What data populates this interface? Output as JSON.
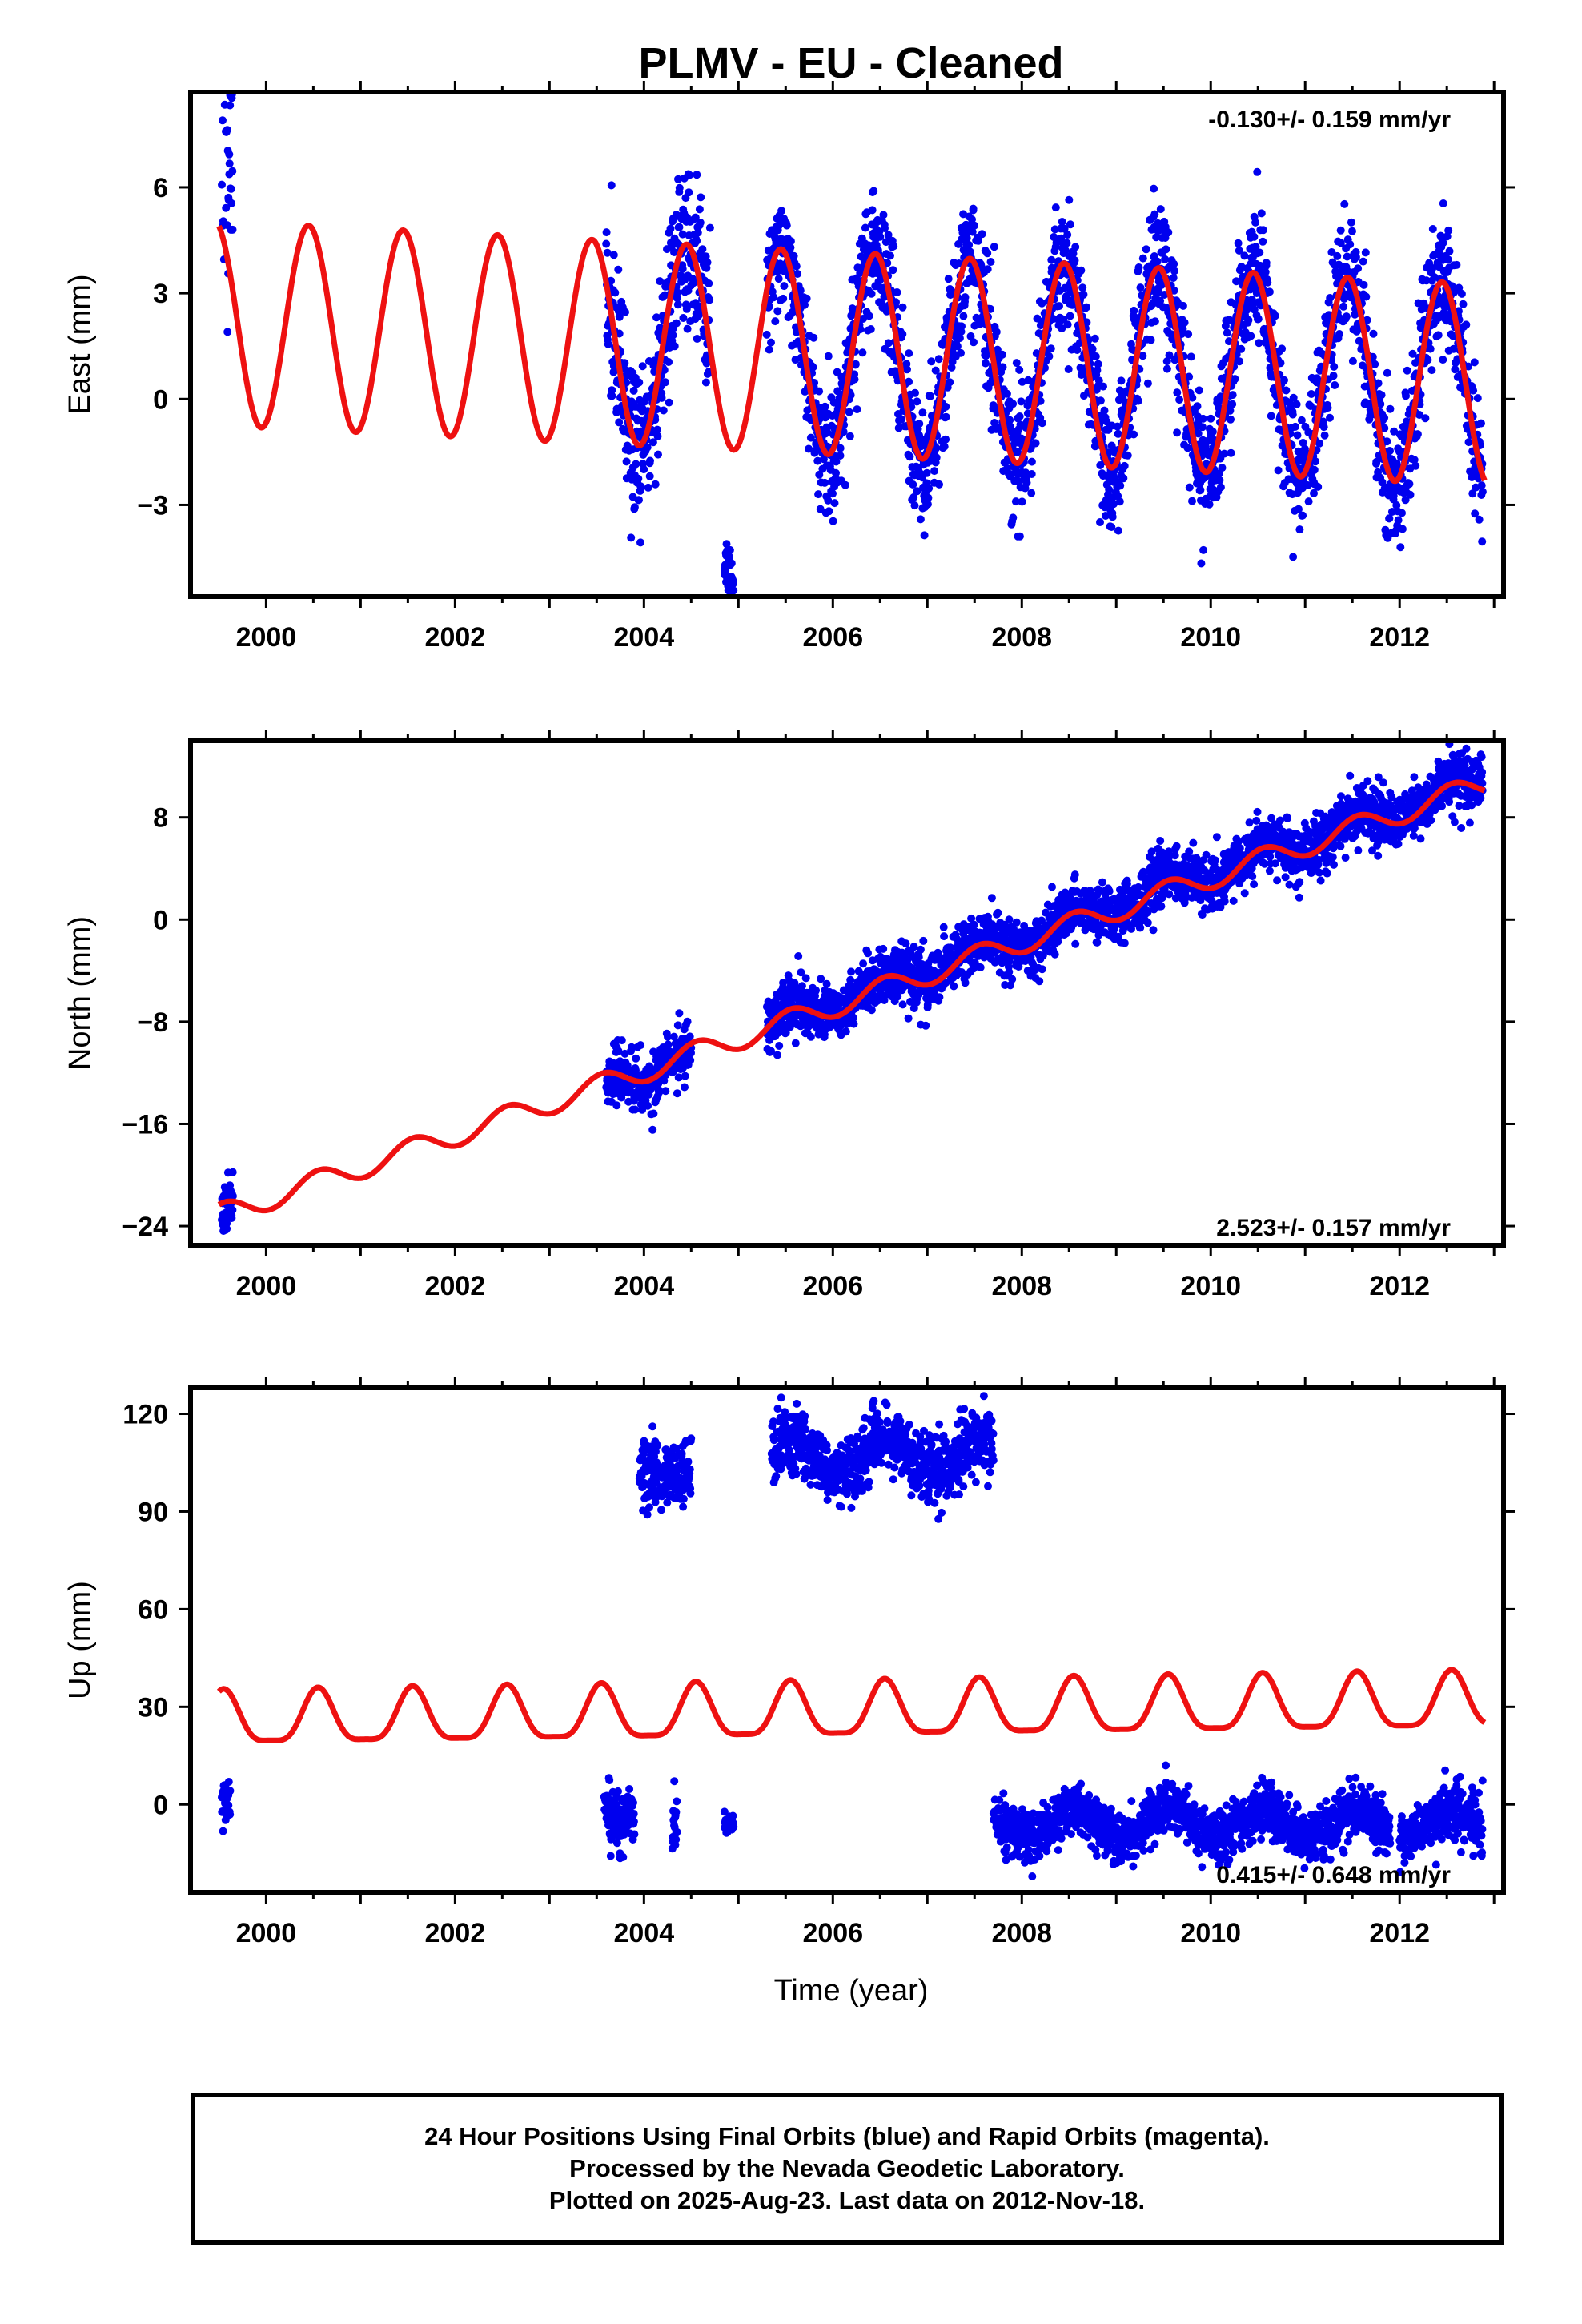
{
  "title": "PLMV  - EU - Cleaned",
  "colors": {
    "data": "#0000ee",
    "model": "#ee1111",
    "frame": "#000000"
  },
  "xlabel": "Time (year)",
  "footer": {
    "line1": "24 Hour Positions Using Final Orbits (blue) and Rapid Orbits (magenta).",
    "line2": "Processed by the Nevada Geodetic Laboratory.",
    "line3": "Plotted on 2025-Aug-23. Last data on 2012-Nov-18."
  },
  "chart_data": [
    {
      "type": "scatter",
      "component": "east",
      "ylabel": "East (mm)",
      "rate_label": "-0.130+/- 0.159 mm/yr",
      "rate_position": "top-right",
      "xlim": [
        1999.2,
        2013.1
      ],
      "ylim": [
        -5.6,
        8.7
      ],
      "xticks": [
        2000,
        2002,
        2004,
        2006,
        2008,
        2010,
        2012
      ],
      "yticks": [
        -3,
        0,
        3,
        6
      ],
      "ytick_labels": [
        "−3",
        "0",
        "3",
        "6"
      ],
      "model": {
        "offset": 1.3,
        "rate": -0.13,
        "t0": 2006.0,
        "annual_amp_start": 2.9,
        "annual_amp_end": 2.85,
        "phase_peak": 0.45
      },
      "data_segments": [
        {
          "start": 1999.53,
          "end": 1999.65,
          "mean": 3.5,
          "scatter": 2.2
        },
        {
          "start": 2003.6,
          "end": 2004.7,
          "mean": 0.0,
          "scatter": 1.2
        },
        {
          "start": 2004.85,
          "end": 2004.95,
          "mean": -3.6,
          "scatter": 0.4
        },
        {
          "start": 2005.3,
          "end": 2012.88,
          "mean": 0.0,
          "scatter": 0.9
        }
      ],
      "noise_seed": 11
    },
    {
      "type": "scatter",
      "component": "north",
      "ylabel": "North (mm)",
      "rate_label": "2.523+/- 0.157 mm/yr",
      "rate_position": "bottom-right",
      "xlim": [
        1999.2,
        2013.1
      ],
      "ylim": [
        -25.5,
        14.0
      ],
      "xticks": [
        2000,
        2002,
        2004,
        2006,
        2008,
        2010,
        2012
      ],
      "yticks": [
        -24,
        -16,
        -8,
        0,
        8
      ],
      "ytick_labels": [
        "−24",
        "−16",
        "−8",
        "0",
        "8"
      ],
      "model": {
        "offset": -9.3,
        "rate": 2.523,
        "t0": 2005.0,
        "annual_amp_start": 0.9,
        "annual_amp_end": 0.9,
        "phase_peak": 0.55
      },
      "data_segments": [
        {
          "start": 1999.53,
          "end": 1999.65,
          "mean": 0.0,
          "scatter": 1.0
        },
        {
          "start": 2003.6,
          "end": 2004.5,
          "mean": 0.0,
          "scatter": 1.1
        },
        {
          "start": 2005.3,
          "end": 2012.88,
          "mean": 0.3,
          "scatter": 1.1
        }
      ],
      "noise_seed": 23
    },
    {
      "type": "scatter",
      "component": "up",
      "ylabel": "Up (mm)",
      "rate_label": "0.415+/- 0.648 mm/yr",
      "rate_position": "bottom-right",
      "xlim": [
        1999.2,
        2013.1
      ],
      "ylim": [
        -27.0,
        128.0
      ],
      "xticks": [
        2000,
        2002,
        2004,
        2006,
        2008,
        2010,
        2012
      ],
      "yticks": [
        0,
        30,
        60,
        90,
        120
      ],
      "ytick_labels": [
        "0",
        "30",
        "60",
        "90",
        "120"
      ],
      "model": {
        "offset": 28.0,
        "rate": 0.415,
        "t0": 2006.0,
        "annual_amp_start": 8.0,
        "annual_amp_end": 8.5,
        "phase_peak": 0.55
      },
      "data_segments": [
        {
          "start": 1999.53,
          "end": 1999.62,
          "abs_mean": 0.0,
          "scatter": 4.0
        },
        {
          "start": 2003.58,
          "end": 2003.9,
          "abs_mean": -4.0,
          "scatter": 5.0
        },
        {
          "start": 2003.95,
          "end": 2004.5,
          "abs_mean": 101.0,
          "scatter": 5.0
        },
        {
          "start": 2004.3,
          "end": 2004.35,
          "abs_mean": -5.0,
          "scatter": 4.0
        },
        {
          "start": 2004.85,
          "end": 2004.95,
          "abs_mean": -6.0,
          "scatter": 1.5
        },
        {
          "start": 2005.35,
          "end": 2007.7,
          "abs_mean": 107.0,
          "scatter": 5.0,
          "wave": 5.0
        },
        {
          "start": 2007.7,
          "end": 2011.9,
          "abs_mean": -6.0,
          "scatter": 4.0,
          "wave": 4.5
        },
        {
          "start": 2012.0,
          "end": 2012.88,
          "abs_mean": -6.0,
          "scatter": 4.0,
          "wave": 4.5
        }
      ],
      "noise_seed": 37
    }
  ]
}
